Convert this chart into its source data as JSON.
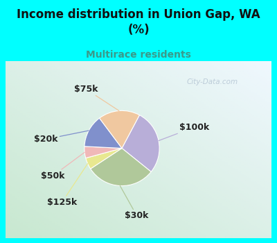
{
  "title": "Income distribution in Union Gap, WA\n(%)",
  "subtitle": "Multirace residents",
  "title_color": "#111111",
  "subtitle_color": "#3a9a8a",
  "background_color": "#00FFFF",
  "slices": [
    {
      "label": "$100k",
      "value": 28,
      "color": "#b8aed8"
    },
    {
      "label": "$30k",
      "value": 30,
      "color": "#b0c89a"
    },
    {
      "label": "$125k",
      "value": 5,
      "color": "#e8e890"
    },
    {
      "label": "$50k",
      "value": 5,
      "color": "#f0b8b8"
    },
    {
      "label": "$20k",
      "value": 14,
      "color": "#8090cc"
    },
    {
      "label": "$75k",
      "value": 18,
      "color": "#f0c8a0"
    }
  ],
  "startangle": 62,
  "watermark": "City-Data.com",
  "panel_bg_colors": [
    "#c8e8d0",
    "#d8eee8",
    "#e8f4f0",
    "#f4f8f8",
    "#ffffff"
  ],
  "label_fontsize": 9,
  "title_fontsize": 12,
  "subtitle_fontsize": 10
}
